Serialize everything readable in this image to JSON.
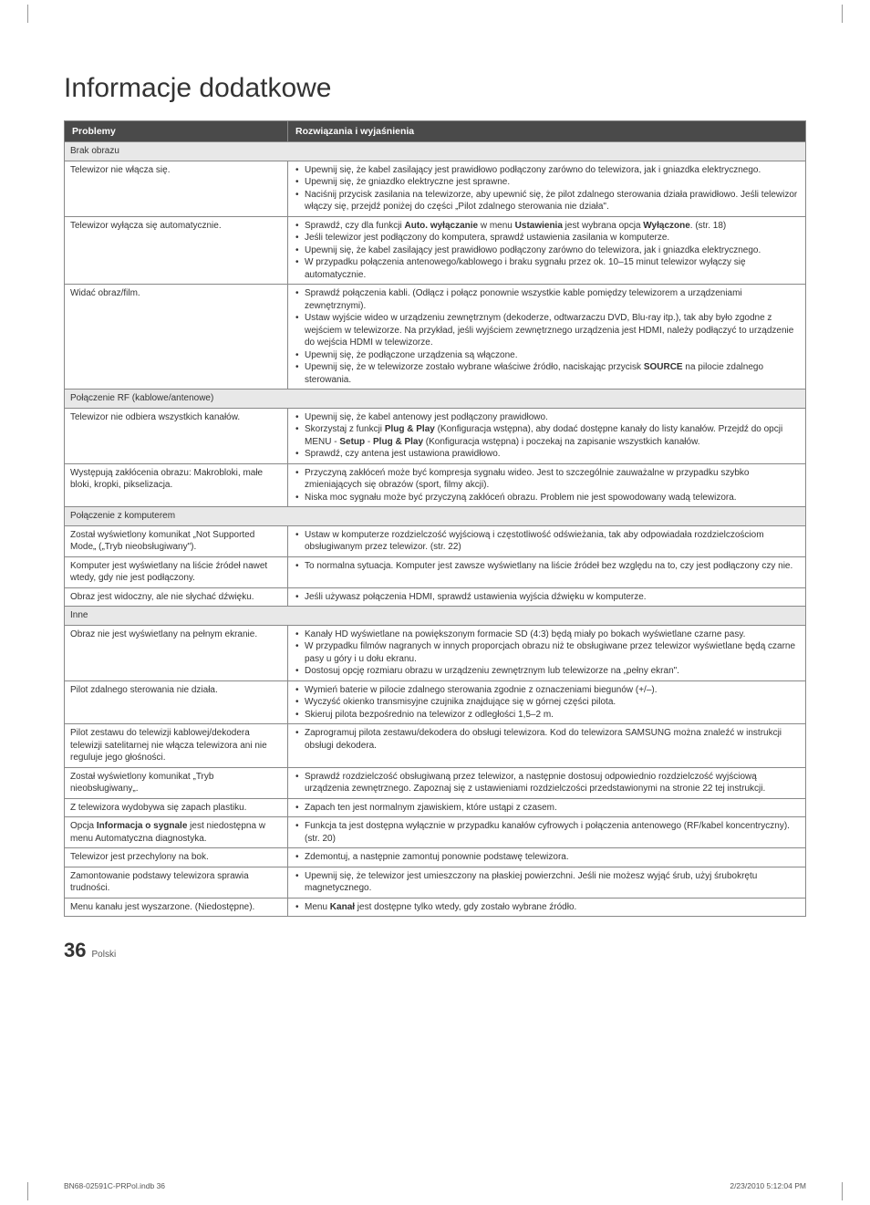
{
  "title": "Informacje dodatkowe",
  "header": {
    "col1": "Problemy",
    "col2": "Rozwiązania i wyjaśnienia"
  },
  "sections": [
    {
      "label": "Brak obrazu",
      "rows": [
        {
          "problem": "Telewizor nie włącza się.",
          "solutions": [
            "Upewnij się, że kabel zasilający jest prawidłowo podłączony zarówno do telewizora, jak i gniazdka elektrycznego.",
            "Upewnij się, że gniazdko elektryczne jest sprawne.",
            "Naciśnij przycisk zasilania na telewizorze, aby upewnić się, że pilot zdalnego sterowania działa prawidłowo. Jeśli telewizor włączy się, przejdź poniżej do części „Pilot zdalnego sterowania nie działa\"."
          ]
        },
        {
          "problem": "Telewizor wyłącza się automatycznie.",
          "solutions": [
            "Sprawdź, czy dla funkcji <b>Auto. wyłączanie</b> w menu <b>Ustawienia</b> jest wybrana opcja <b>Wyłączone</b>. (str. 18)",
            "Jeśli telewizor jest podłączony do komputera, sprawdź ustawienia zasilania w komputerze.",
            "Upewnij się, że kabel zasilający jest prawidłowo podłączony zarówno do telewizora, jak i gniazdka elektrycznego.",
            "W przypadku połączenia antenowego/kablowego i braku sygnału przez ok. 10–15 minut telewizor wyłączy się automatycznie."
          ]
        },
        {
          "problem": "Widać obraz/film.",
          "solutions": [
            "Sprawdź połączenia kabli. (Odłącz i połącz ponownie wszystkie kable pomiędzy telewizorem a urządzeniami zewnętrznymi).",
            "Ustaw wyjście wideo w urządzeniu zewnętrznym (dekoderze, odtwarzaczu DVD, Blu-ray itp.), tak aby było zgodne z wejściem w telewizorze. Na przykład, jeśli wyjściem zewnętrznego urządzenia jest HDMI, należy podłączyć to urządzenie do wejścia HDMI w telewizorze.",
            "Upewnij się, że podłączone urządzenia są włączone.",
            "Upewnij się, że w telewizorze zostało wybrane właściwe źródło, naciskając przycisk <b>SOURCE</b> na pilocie zdalnego sterowania."
          ]
        }
      ]
    },
    {
      "label": "Połączenie RF (kablowe/antenowe)",
      "rows": [
        {
          "problem": "Telewizor nie odbiera wszystkich kanałów.",
          "solutions": [
            "Upewnij się, że kabel antenowy jest podłączony prawidłowo.",
            "Skorzystaj z funkcji <b>Plug & Play</b> (Konfiguracja wstępna), aby dodać dostępne kanały do listy kanałów. Przejdź do opcji MENU - <b>Setup</b> - <b>Plug & Play</b> (Konfiguracja wstępna) i poczekaj na zapisanie wszystkich kanałów.",
            "Sprawdź, czy antena jest ustawiona prawidłowo."
          ]
        },
        {
          "problem": "Występują zakłócenia obrazu: Makrobloki, małe bloki, kropki, pikselizacja.",
          "solutions": [
            "Przyczyną zakłóceń może być kompresja sygnału wideo. Jest to szczególnie zauważalne w przypadku szybko zmieniających się obrazów (sport, filmy akcji).",
            "Niska moc sygnału może być przyczyną zakłóceń obrazu. Problem nie jest spowodowany wadą telewizora."
          ]
        }
      ]
    },
    {
      "label": "Połączenie z komputerem",
      "rows": [
        {
          "problem": "Został wyświetlony komunikat „Not Supported Mode„ („Tryb nieobsługiwany\").",
          "solutions": [
            "Ustaw w komputerze rozdzielczość wyjściową i częstotliwość odświeżania, tak aby odpowiadała rozdzielczościom obsługiwanym przez telewizor. (str. 22)"
          ]
        },
        {
          "problem": "Komputer jest wyświetlany na liście źródeł nawet wtedy, gdy nie jest podłączony.",
          "solutions": [
            "To normalna sytuacja. Komputer jest zawsze wyświetlany na liście źródeł bez względu na to, czy jest podłączony czy nie."
          ]
        },
        {
          "problem": "Obraz jest widoczny, ale nie słychać dźwięku.",
          "solutions": [
            "Jeśli używasz połączenia HDMI, sprawdź ustawienia wyjścia dźwięku w komputerze."
          ]
        }
      ]
    },
    {
      "label": "Inne",
      "rows": [
        {
          "problem": "Obraz nie jest wyświetlany na pełnym ekranie.",
          "solutions": [
            "Kanały HD wyświetlane na powiększonym formacie SD (4:3) będą miały po bokach wyświetlane czarne pasy.",
            "W przypadku filmów nagranych w innych proporcjach obrazu niż te obsługiwane przez telewizor wyświetlane będą czarne pasy u góry i u dołu ekranu.",
            "Dostosuj opcję rozmiaru obrazu w urządzeniu zewnętrznym lub telewizorze na „pełny ekran\"."
          ]
        },
        {
          "problem": "Pilot zdalnego sterowania nie działa.",
          "solutions": [
            "Wymień baterie w pilocie zdalnego sterowania zgodnie z oznaczeniami biegunów (+/–).",
            "Wyczyść okienko transmisyjne czujnika znajdujące się w górnej części pilota.",
            "Skieruj pilota bezpośrednio na telewizor z odległości 1,5–2 m."
          ]
        },
        {
          "problem": "Pilot zestawu do telewizji kablowej/dekodera telewizji satelitarnej nie włącza telewizora ani nie reguluje jego głośności.",
          "solutions": [
            "Zaprogramuj pilota zestawu/dekodera do obsługi telewizora. Kod do telewizora SAMSUNG można znaleźć w instrukcji obsługi dekodera."
          ]
        },
        {
          "problem": "Został wyświetlony komunikat „Tryb nieobsługiwany„.",
          "solutions": [
            "Sprawdź rozdzielczość obsługiwaną przez telewizor, a następnie dostosuj odpowiednio rozdzielczość wyjściową urządzenia zewnętrznego. Zapoznaj się z ustawieniami rozdzielczości przedstawionymi na stronie 22 tej instrukcji."
          ]
        },
        {
          "problem": "Z telewizora wydobywa się zapach plastiku.",
          "solutions": [
            "Zapach ten jest normalnym zjawiskiem, które ustąpi z czasem."
          ]
        },
        {
          "problem": "Opcja <b>Informacja o sygnale</b> jest niedostępna w menu Automatyczna diagnostyka.",
          "solutions": [
            "Funkcja ta jest dostępna wyłącznie w przypadku kanałów cyfrowych i połączenia antenowego (RF/kabel koncentryczny). (str. 20)"
          ]
        },
        {
          "problem": "Telewizor jest przechylony na bok.",
          "solutions": [
            "Zdemontuj, a następnie zamontuj ponownie podstawę telewizora."
          ]
        },
        {
          "problem": "Zamontowanie podstawy telewizora sprawia trudności.",
          "solutions": [
            "Upewnij się, że telewizor jest umieszczony na płaskiej powierzchni. Jeśli nie możesz wyjąć śrub, użyj śrubokrętu magnetycznego."
          ]
        },
        {
          "problem": "Menu kanału jest wyszarzone. (Niedostępne).",
          "solutions": [
            "Menu <b>Kanał</b> jest dostępne tylko wtedy, gdy zostało wybrane źródło."
          ]
        }
      ]
    }
  ],
  "footer": {
    "page": "36",
    "lang": "Polski"
  },
  "print_footer": {
    "left": "BN68-02591C-PRPol.indb   36",
    "right": "2/23/2010   5:12:04 PM"
  }
}
